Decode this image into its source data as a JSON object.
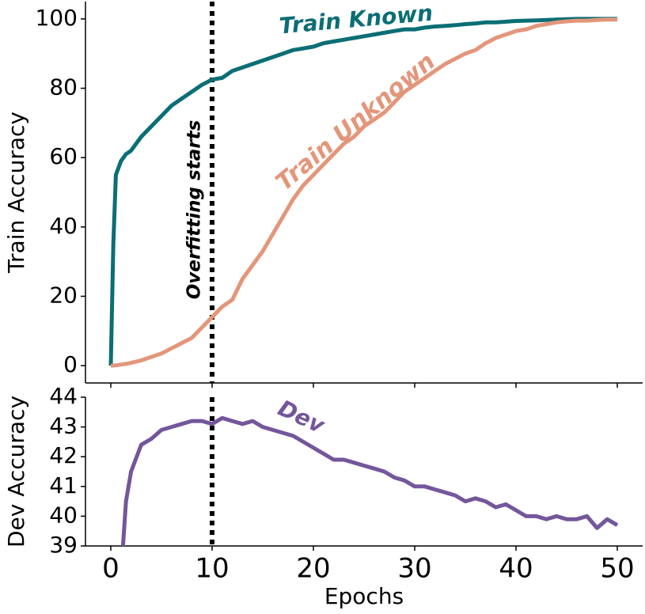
{
  "chart_data": [
    {
      "type": "line",
      "ylabel": "Train Accuracy",
      "annotation": "Overfitting starts",
      "vline": 10,
      "x": [
        0,
        0.25,
        0.5,
        1,
        1.5,
        2,
        3,
        4,
        5,
        6,
        7,
        8,
        9,
        10,
        11,
        12,
        13,
        14,
        15,
        16,
        17,
        18,
        19,
        20,
        21,
        22,
        23,
        24,
        25,
        26,
        27,
        28,
        29,
        30,
        31,
        32,
        33,
        34,
        35,
        36,
        37,
        38,
        39,
        40,
        41,
        42,
        43,
        44,
        45,
        46,
        47,
        48,
        49,
        50
      ],
      "series": [
        {
          "name": "Train Known",
          "color": "#0b6e75",
          "values": [
            0,
            35,
            55,
            59,
            61,
            62,
            66,
            69,
            72,
            75,
            77,
            79,
            81,
            82.5,
            83,
            85,
            86,
            87,
            88,
            89,
            90,
            91,
            91.5,
            92,
            93,
            93.5,
            94,
            94.5,
            95,
            95.5,
            96,
            96.5,
            97,
            97,
            97.5,
            97.8,
            98,
            98.2,
            98.5,
            98.7,
            99,
            99,
            99.2,
            99.4,
            99.5,
            99.6,
            99.7,
            99.8,
            99.9,
            100,
            100,
            100,
            100,
            100
          ]
        },
        {
          "name": "Train Unknown",
          "color": "#e3967a",
          "values": [
            0,
            0.05,
            0.1,
            0.3,
            0.5,
            0.8,
            1.5,
            2.5,
            3.5,
            5,
            6.5,
            8,
            11,
            14,
            17,
            19,
            25,
            29,
            33,
            38,
            43,
            48,
            52,
            55,
            58,
            61,
            64,
            66,
            69,
            71,
            73,
            76,
            79,
            81,
            83,
            85,
            87,
            88.5,
            90,
            91,
            93,
            94.5,
            95.5,
            96.5,
            97,
            98,
            98.5,
            99,
            99.3,
            99.5,
            99.5,
            99.7,
            99.8,
            99.8
          ]
        }
      ],
      "xlim": [
        -2.5,
        52.5
      ],
      "xticks": [
        0,
        10,
        20,
        30,
        40,
        50
      ],
      "ylim": [
        -5,
        105
      ],
      "yticks": [
        0,
        20,
        40,
        60,
        80,
        100
      ]
    },
    {
      "type": "line",
      "ylabel": "Dev Accuracy",
      "xlabel": "Epochs",
      "vline": 10,
      "x": [
        1.2,
        1.5,
        2,
        3,
        4,
        5,
        6,
        7,
        8,
        9,
        10,
        11,
        12,
        13,
        14,
        15,
        16,
        17,
        18,
        19,
        20,
        21,
        22,
        23,
        24,
        25,
        26,
        27,
        28,
        29,
        30,
        31,
        32,
        33,
        34,
        35,
        36,
        37,
        38,
        39,
        40,
        41,
        42,
        43,
        44,
        45,
        46,
        47,
        48,
        49,
        50
      ],
      "series": [
        {
          "name": "Dev",
          "color": "#74569b",
          "values": [
            39.0,
            40.5,
            41.5,
            42.4,
            42.6,
            42.9,
            43,
            43.1,
            43.2,
            43.2,
            43.1,
            43.3,
            43.2,
            43.1,
            43.2,
            43,
            42.9,
            42.8,
            42.7,
            42.5,
            42.3,
            42.1,
            41.9,
            41.9,
            41.8,
            41.7,
            41.6,
            41.5,
            41.3,
            41.2,
            41.0,
            41.0,
            40.9,
            40.8,
            40.7,
            40.5,
            40.6,
            40.5,
            40.3,
            40.4,
            40.2,
            40.0,
            40.0,
            39.9,
            40.0,
            39.9,
            39.9,
            40.0,
            39.6,
            39.9,
            39.7
          ]
        }
      ],
      "xlim": [
        -2.5,
        52.5
      ],
      "xticks": [
        0,
        10,
        20,
        30,
        40,
        50
      ],
      "ylim": [
        39,
        44
      ],
      "yticks": [
        39,
        40,
        41,
        42,
        43,
        44
      ]
    }
  ]
}
